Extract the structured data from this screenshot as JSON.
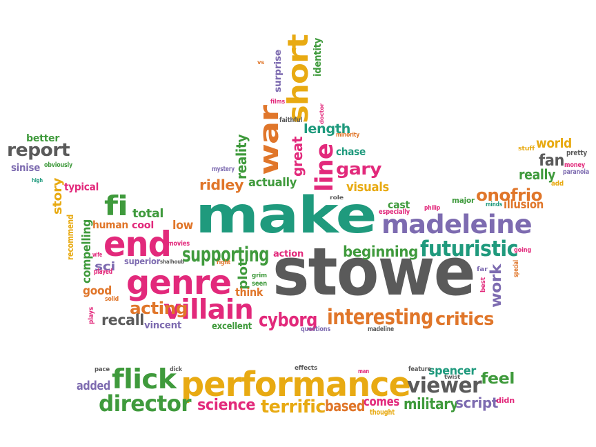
{
  "words": [
    {
      "text": "make",
      "color": "teal"
    },
    {
      "text": "stowe",
      "color": "gray"
    },
    {
      "text": "performance",
      "color": "gold"
    },
    {
      "text": "genre",
      "color": "pink"
    },
    {
      "text": "end",
      "color": "pink"
    },
    {
      "text": "villain",
      "color": "pink"
    },
    {
      "text": "madeleine",
      "color": "purple"
    },
    {
      "text": "flick",
      "color": "green"
    },
    {
      "text": "war",
      "color": "orange"
    },
    {
      "text": "short",
      "color": "gold"
    },
    {
      "text": "line",
      "color": "pink"
    },
    {
      "text": "fi",
      "color": "green"
    },
    {
      "text": "futuristic",
      "color": "teal"
    },
    {
      "text": "interesting",
      "color": "orange"
    },
    {
      "text": "report",
      "color": "gray"
    },
    {
      "text": "director",
      "color": "green"
    },
    {
      "text": "viewer",
      "color": "gray"
    },
    {
      "text": "onofrio",
      "color": "orange"
    },
    {
      "text": "gary",
      "color": "pink"
    },
    {
      "text": "supporting",
      "color": "green"
    },
    {
      "text": "critics",
      "color": "orange"
    },
    {
      "text": "cyborg",
      "color": "pink"
    },
    {
      "text": "acting",
      "color": "orange"
    },
    {
      "text": "recall",
      "color": "gray"
    },
    {
      "text": "feel",
      "color": "green"
    },
    {
      "text": "terrific",
      "color": "gold"
    },
    {
      "text": "science",
      "color": "pink"
    },
    {
      "text": "based",
      "color": "orange"
    },
    {
      "text": "military",
      "color": "green"
    },
    {
      "text": "spencer",
      "color": "teal"
    },
    {
      "text": "script",
      "color": "purple"
    },
    {
      "text": "added",
      "color": "purple"
    },
    {
      "text": "comes",
      "color": "pink"
    },
    {
      "text": "beginning",
      "color": "green"
    },
    {
      "text": "length",
      "color": "teal"
    },
    {
      "text": "great",
      "color": "pink"
    },
    {
      "text": "reality",
      "color": "green"
    },
    {
      "text": "actually",
      "color": "green"
    },
    {
      "text": "ridley",
      "color": "orange"
    },
    {
      "text": "visuals",
      "color": "gold"
    },
    {
      "text": "chase",
      "color": "teal"
    },
    {
      "text": "fan",
      "color": "gray"
    },
    {
      "text": "really",
      "color": "green"
    },
    {
      "text": "world",
      "color": "gold"
    },
    {
      "text": "illusion",
      "color": "orange"
    },
    {
      "text": "work",
      "color": "purple"
    },
    {
      "text": "plot",
      "color": "green"
    },
    {
      "text": "think",
      "color": "orange"
    },
    {
      "text": "good",
      "color": "orange"
    },
    {
      "text": "sci",
      "color": "purple"
    },
    {
      "text": "compelling",
      "color": "green"
    },
    {
      "text": "human",
      "color": "orange"
    },
    {
      "text": "total",
      "color": "green"
    },
    {
      "text": "cool",
      "color": "pink"
    },
    {
      "text": "low",
      "color": "orange"
    },
    {
      "text": "story",
      "color": "gold"
    },
    {
      "text": "typical",
      "color": "pink"
    },
    {
      "text": "better",
      "color": "green"
    },
    {
      "text": "sinise",
      "color": "purple"
    },
    {
      "text": "obviously",
      "color": "green"
    },
    {
      "text": "high",
      "color": "teal"
    },
    {
      "text": "recommend",
      "color": "gold"
    },
    {
      "text": "vincent",
      "color": "purple"
    },
    {
      "text": "excellent",
      "color": "green"
    },
    {
      "text": "action",
      "color": "pink"
    },
    {
      "text": "cast",
      "color": "green"
    },
    {
      "text": "especially",
      "color": "pink"
    },
    {
      "text": "major",
      "color": "green"
    },
    {
      "text": "philip",
      "color": "pink"
    },
    {
      "text": "minds",
      "color": "teal"
    },
    {
      "text": "role",
      "color": "gray"
    },
    {
      "text": "identity",
      "color": "green"
    },
    {
      "text": "surprise",
      "color": "purple"
    },
    {
      "text": "vs",
      "color": "orange"
    },
    {
      "text": "films",
      "color": "pink"
    },
    {
      "text": "faithful",
      "color": "gray"
    },
    {
      "text": "doctor",
      "color": "pink"
    },
    {
      "text": "minority",
      "color": "orange"
    },
    {
      "text": "mystery",
      "color": "purple"
    },
    {
      "text": "superior",
      "color": "purple"
    },
    {
      "text": "shalhoub",
      "color": "gray"
    },
    {
      "text": "movies",
      "color": "pink"
    },
    {
      "text": "right",
      "color": "orange"
    },
    {
      "text": "grim",
      "color": "green"
    },
    {
      "text": "seen",
      "color": "green"
    },
    {
      "text": "questions",
      "color": "purple"
    },
    {
      "text": "madeline",
      "color": "gray"
    },
    {
      "text": "wife",
      "color": "pink"
    },
    {
      "text": "played",
      "color": "pink"
    },
    {
      "text": "solid",
      "color": "orange"
    },
    {
      "text": "plays",
      "color": "pink"
    },
    {
      "text": "stuff",
      "color": "gold"
    },
    {
      "text": "pretty",
      "color": "gray"
    },
    {
      "text": "money",
      "color": "pink"
    },
    {
      "text": "paranoia",
      "color": "purple"
    },
    {
      "text": "add",
      "color": "gold"
    },
    {
      "text": "going",
      "color": "pink"
    },
    {
      "text": "far",
      "color": "purple"
    },
    {
      "text": "best",
      "color": "pink"
    },
    {
      "text": "special",
      "color": "orange"
    },
    {
      "text": "pace",
      "color": "gray"
    },
    {
      "text": "dick",
      "color": "gray"
    },
    {
      "text": "effects",
      "color": "gray"
    },
    {
      "text": "man",
      "color": "pink"
    },
    {
      "text": "feature",
      "color": "gray"
    },
    {
      "text": "twist",
      "color": "gray"
    },
    {
      "text": "thought",
      "color": "gold"
    },
    {
      "text": "didn",
      "color": "pink"
    }
  ]
}
